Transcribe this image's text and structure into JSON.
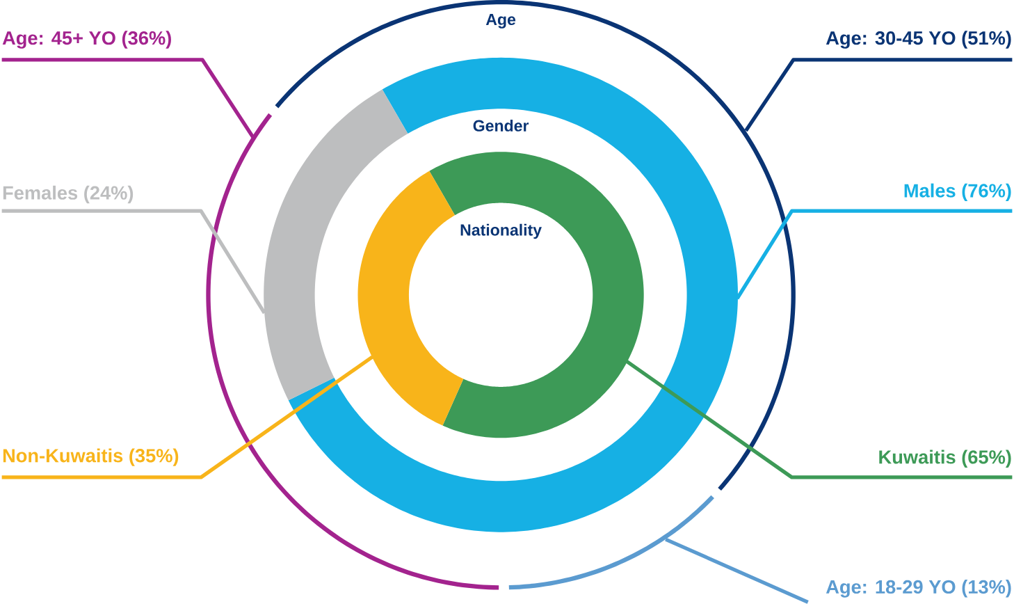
{
  "chart_data": [
    {
      "type": "donut",
      "title": "Age",
      "categories": [
        "Age: 30-45 YO (51%)",
        "Age: 18-29 YO (13%)",
        "Age: 45+ YO (36%)"
      ],
      "values": [
        51,
        13,
        36
      ],
      "colors": [
        "#0a3474",
        "#5b9bd0",
        "#a3238e"
      ]
    },
    {
      "type": "donut",
      "title": "Gender",
      "categories": [
        "Males (76%)",
        "Females (24%)"
      ],
      "values": [
        76,
        24
      ],
      "colors": [
        "#16b0e4",
        "#bdbebf"
      ]
    },
    {
      "type": "donut",
      "title": "Nationality",
      "categories": [
        "Kuwaitis (65%)",
        "Non-Kuwaitis (35%)"
      ],
      "values": [
        65,
        35
      ],
      "colors": [
        "#3d9a57",
        "#f8b41a"
      ]
    }
  ]
}
